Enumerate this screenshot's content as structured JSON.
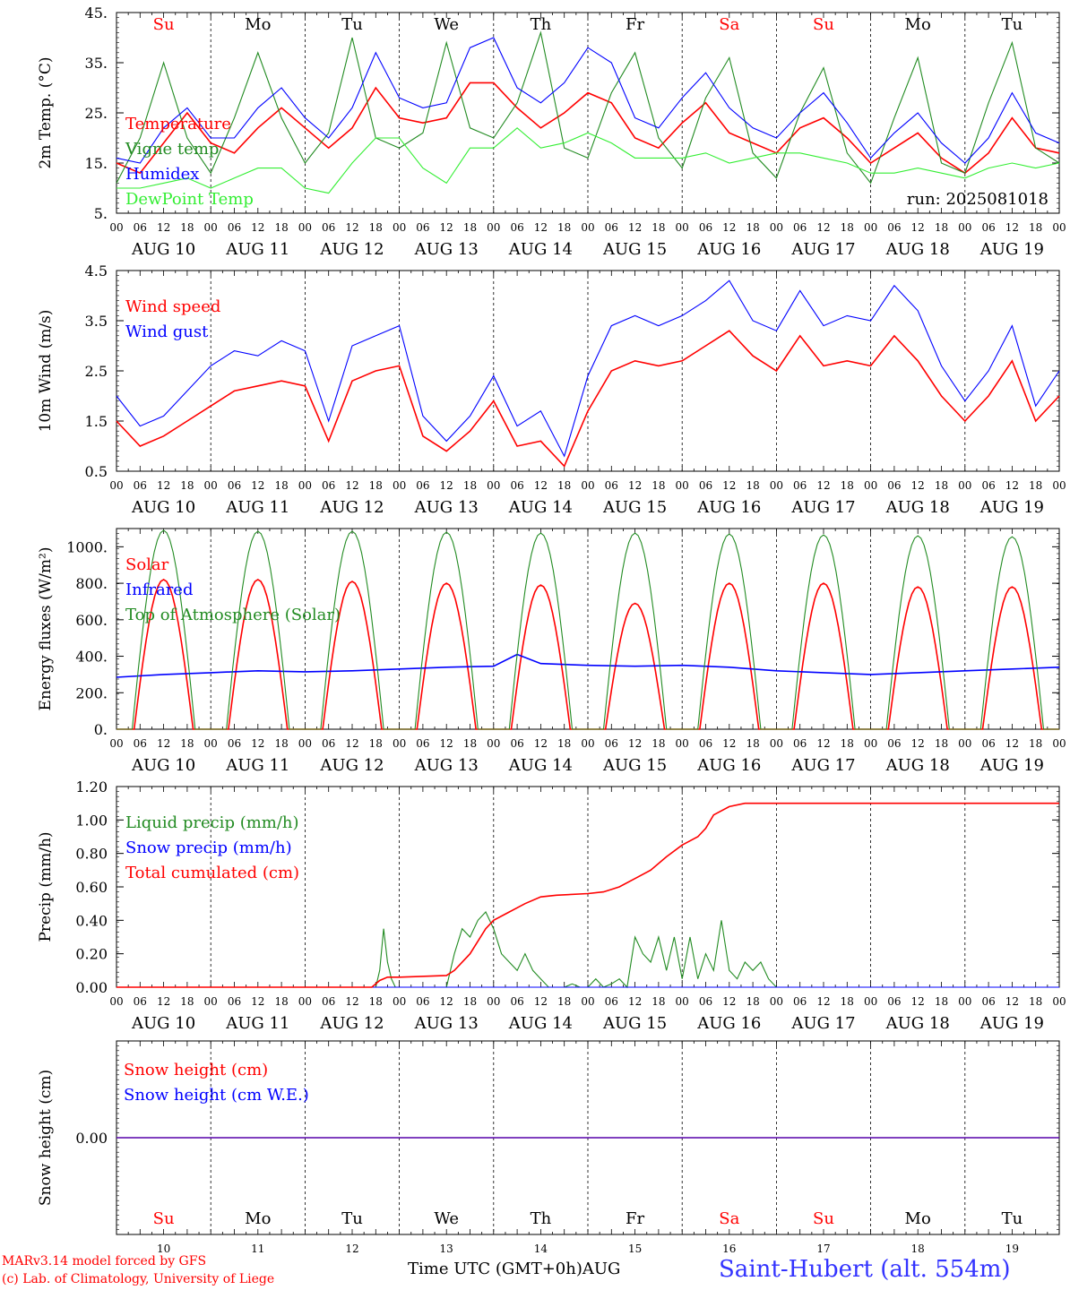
{
  "run_label": "run: 2025081018",
  "days": {
    "day_names": [
      "Su",
      "Mo",
      "Tu",
      "We",
      "Th",
      "Fr",
      "Sa",
      "Su",
      "Mo",
      "Tu"
    ],
    "day_name_colors": [
      "#ff0000",
      "#000000",
      "#000000",
      "#000000",
      "#000000",
      "#000000",
      "#ff0000",
      "#ff0000",
      "#000000",
      "#000000"
    ],
    "date_labels": [
      "AUG 10",
      "AUG 11",
      "AUG 12",
      "AUG 13",
      "AUG 14",
      "AUG 15",
      "AUG 16",
      "AUG 17",
      "AUG 18",
      "AUG 19"
    ],
    "day_numbers": [
      "10",
      "11",
      "12",
      "13",
      "14",
      "15",
      "16",
      "17",
      "18",
      "19"
    ],
    "hour_labels": [
      "00",
      "06",
      "12",
      "18"
    ],
    "last_hour_label": "00"
  },
  "footer": {
    "model_note": "MARv3.14 model forced by GFS",
    "credit_note": "(c) Lab. of Climatology, University of Liege",
    "time_caption": "Time UTC (GMT+0h)AUG",
    "station": "Saint-Hubert (alt. 554m)"
  },
  "colors": {
    "red": "#ff0000",
    "green": "#228b22",
    "blue": "#0000ff",
    "light_green": "#33ee33",
    "grid": "#000000"
  },
  "chart_data": [
    {
      "type": "line",
      "ylabel": "2m Temp. (°C)",
      "yticks": [
        "45.",
        "35.",
        "25.",
        "15.",
        "5."
      ],
      "ylim": [
        5,
        45
      ],
      "x_unit": "hours since AUG 10 00 UTC",
      "series": [
        {
          "name": "Temperature",
          "color": "red",
          "x": [
            0,
            6,
            12,
            18,
            24,
            30,
            36,
            42,
            48,
            54,
            60,
            66,
            72,
            78,
            84,
            90,
            96,
            102,
            108,
            114,
            120,
            126,
            132,
            138,
            144,
            150,
            156,
            162,
            168,
            174,
            180,
            186,
            192,
            198,
            204,
            210,
            216,
            222,
            228,
            234,
            240
          ],
          "values": [
            15,
            13,
            19,
            25,
            19,
            17,
            22,
            26,
            22,
            18,
            22,
            30,
            24,
            23,
            24,
            31,
            31,
            26,
            22,
            25,
            29,
            27,
            20,
            18,
            23,
            27,
            21,
            19,
            17,
            22,
            24,
            20,
            15,
            18,
            21,
            16,
            13,
            17,
            24,
            18,
            17
          ]
        },
        {
          "name": "Vigne temp",
          "color": "green",
          "x": [
            0,
            6,
            12,
            18,
            24,
            30,
            36,
            42,
            48,
            54,
            60,
            66,
            72,
            78,
            84,
            90,
            96,
            102,
            108,
            114,
            120,
            126,
            132,
            138,
            144,
            150,
            156,
            162,
            168,
            174,
            180,
            186,
            192,
            198,
            204,
            210,
            216,
            222,
            228,
            234,
            240
          ],
          "values": [
            11,
            20,
            35,
            20,
            13,
            24,
            37,
            24,
            15,
            21,
            40,
            20,
            18,
            21,
            39,
            22,
            20,
            27,
            41,
            18,
            16,
            29,
            37,
            20,
            14,
            28,
            36,
            17,
            12,
            25,
            34,
            17,
            11,
            24,
            36,
            15,
            13,
            27,
            39,
            18,
            15
          ]
        },
        {
          "name": "Humidex",
          "color": "blue",
          "x": [
            0,
            6,
            12,
            18,
            24,
            30,
            36,
            42,
            48,
            54,
            60,
            66,
            72,
            78,
            84,
            90,
            96,
            102,
            108,
            114,
            120,
            126,
            132,
            138,
            144,
            150,
            156,
            162,
            168,
            174,
            180,
            186,
            192,
            198,
            204,
            210,
            216,
            222,
            228,
            234,
            240
          ],
          "values": [
            16,
            15,
            22,
            26,
            20,
            20,
            26,
            30,
            24,
            20,
            26,
            37,
            28,
            26,
            27,
            38,
            40,
            30,
            27,
            31,
            38,
            35,
            24,
            22,
            28,
            33,
            26,
            22,
            20,
            25,
            29,
            23,
            16,
            21,
            25,
            19,
            15,
            20,
            29,
            21,
            19
          ]
        },
        {
          "name": "DewPoint Temp",
          "color": "light_green",
          "x": [
            0,
            6,
            12,
            18,
            24,
            30,
            36,
            42,
            48,
            54,
            60,
            66,
            72,
            78,
            84,
            90,
            96,
            102,
            108,
            114,
            120,
            126,
            132,
            138,
            144,
            150,
            156,
            162,
            168,
            174,
            180,
            186,
            192,
            198,
            204,
            210,
            216,
            222,
            228,
            234,
            240
          ],
          "values": [
            10,
            10,
            11,
            12,
            10,
            12,
            14,
            14,
            10,
            9,
            15,
            20,
            20,
            14,
            11,
            18,
            18,
            22,
            18,
            19,
            21,
            19,
            16,
            16,
            16,
            17,
            15,
            16,
            17,
            17,
            16,
            15,
            13,
            13,
            14,
            13,
            12,
            14,
            15,
            14,
            15
          ]
        }
      ]
    },
    {
      "type": "line",
      "ylabel": "10m Wind (m/s)",
      "yticks": [
        "4.5",
        "3.5",
        "2.5",
        "1.5",
        "0.5"
      ],
      "ylim": [
        0.5,
        4.5
      ],
      "x_unit": "hours since AUG 10 00 UTC",
      "series": [
        {
          "name": "Wind speed",
          "color": "red",
          "x": [
            0,
            6,
            12,
            18,
            24,
            30,
            36,
            42,
            48,
            54,
            60,
            66,
            72,
            78,
            84,
            90,
            96,
            102,
            108,
            114,
            120,
            126,
            132,
            138,
            144,
            150,
            156,
            162,
            168,
            174,
            180,
            186,
            192,
            198,
            204,
            210,
            216,
            222,
            228,
            234,
            240
          ],
          "values": [
            1.5,
            1.0,
            1.2,
            1.5,
            1.8,
            2.1,
            2.2,
            2.3,
            2.2,
            1.1,
            2.3,
            2.5,
            2.6,
            1.2,
            0.9,
            1.3,
            1.9,
            1.0,
            1.1,
            0.6,
            1.7,
            2.5,
            2.7,
            2.6,
            2.7,
            3.0,
            3.3,
            2.8,
            2.5,
            3.2,
            2.6,
            2.7,
            2.6,
            3.2,
            2.7,
            2.0,
            1.5,
            2.0,
            2.7,
            1.5,
            2.0
          ]
        },
        {
          "name": "Wind gust",
          "color": "blue",
          "x": [
            0,
            6,
            12,
            18,
            24,
            30,
            36,
            42,
            48,
            54,
            60,
            66,
            72,
            78,
            84,
            90,
            96,
            102,
            108,
            114,
            120,
            126,
            132,
            138,
            144,
            150,
            156,
            162,
            168,
            174,
            180,
            186,
            192,
            198,
            204,
            210,
            216,
            222,
            228,
            234,
            240
          ],
          "values": [
            2.0,
            1.4,
            1.6,
            2.1,
            2.6,
            2.9,
            2.8,
            3.1,
            2.9,
            1.5,
            3.0,
            3.2,
            3.4,
            1.6,
            1.1,
            1.6,
            2.4,
            1.4,
            1.7,
            0.8,
            2.4,
            3.4,
            3.6,
            3.4,
            3.6,
            3.9,
            4.3,
            3.5,
            3.3,
            4.1,
            3.4,
            3.6,
            3.5,
            4.2,
            3.7,
            2.6,
            1.9,
            2.5,
            3.4,
            1.8,
            2.5
          ]
        }
      ]
    },
    {
      "type": "line",
      "ylabel": "Energy fluxes (W/m²)",
      "yticks": [
        "1000.",
        "800.",
        "600.",
        "400.",
        "200.",
        "0."
      ],
      "ylim": [
        0,
        1100
      ],
      "x_unit": "hours since AUG 10 00 UTC",
      "series": [
        {
          "name": "Solar",
          "color": "red",
          "daily_peak": [
            820,
            820,
            810,
            800,
            790,
            690,
            800,
            800,
            780,
            780
          ],
          "sunrise_hour": 4.5,
          "sunset_hour": 19.5
        },
        {
          "name": "Infrared",
          "color": "blue",
          "x": [
            0,
            12,
            24,
            36,
            48,
            60,
            72,
            84,
            96,
            102,
            108,
            120,
            132,
            144,
            156,
            168,
            180,
            192,
            204,
            216,
            228,
            240
          ],
          "values": [
            285,
            300,
            310,
            320,
            315,
            320,
            330,
            340,
            345,
            410,
            360,
            350,
            345,
            350,
            340,
            320,
            310,
            300,
            310,
            320,
            330,
            340
          ]
        },
        {
          "name": "Top of Atmosphere (Solar)",
          "color": "green",
          "daily_peak": [
            1090,
            1085,
            1085,
            1080,
            1075,
            1075,
            1070,
            1065,
            1060,
            1055
          ],
          "sunrise_hour": 4.0,
          "sunset_hour": 20.0
        }
      ]
    },
    {
      "type": "line",
      "ylabel": "Precip (mm/h)",
      "yticks": [
        "1.20",
        "1.00",
        "0.80",
        "0.60",
        "0.40",
        "0.20",
        "0.00"
      ],
      "ylim": [
        0,
        1.2
      ],
      "x_unit": "hours since AUG 10 00 UTC",
      "series": [
        {
          "name": "Liquid precip (mm/h)",
          "color": "green",
          "x": [
            0,
            66,
            67,
            68,
            69,
            70,
            71,
            84,
            86,
            88,
            90,
            92,
            94,
            96,
            98,
            100,
            102,
            104,
            106,
            108,
            110,
            112,
            114,
            116,
            118,
            120,
            122,
            124,
            126,
            128,
            130,
            132,
            134,
            136,
            138,
            140,
            142,
            144,
            146,
            148,
            150,
            152,
            154,
            156,
            158,
            160,
            162,
            164,
            166,
            168,
            240
          ],
          "values": [
            0,
            0,
            0.1,
            0.35,
            0.15,
            0.05,
            0,
            0,
            0.2,
            0.35,
            0.3,
            0.4,
            0.45,
            0.35,
            0.2,
            0.15,
            0.1,
            0.2,
            0.1,
            0.05,
            0,
            0,
            0,
            0.02,
            0,
            0,
            0.05,
            0,
            0.02,
            0.05,
            0,
            0.3,
            0.2,
            0.15,
            0.3,
            0.1,
            0.3,
            0.05,
            0.3,
            0.05,
            0.2,
            0.1,
            0.4,
            0.1,
            0.05,
            0.15,
            0.1,
            0.15,
            0.05,
            0,
            0
          ]
        },
        {
          "name": "Snow precip (mm/h)",
          "color": "blue",
          "x": [
            0,
            240
          ],
          "values": [
            0,
            0
          ]
        },
        {
          "name": "Total cumulated (cm)",
          "color": "red",
          "x": [
            0,
            65,
            67,
            69,
            72,
            84,
            86,
            90,
            94,
            96,
            100,
            104,
            108,
            112,
            120,
            124,
            128,
            132,
            136,
            140,
            144,
            148,
            150,
            152,
            156,
            160,
            162,
            240
          ],
          "values": [
            0,
            0,
            0.04,
            0.06,
            0.06,
            0.07,
            0.1,
            0.2,
            0.35,
            0.4,
            0.45,
            0.5,
            0.54,
            0.55,
            0.56,
            0.57,
            0.6,
            0.65,
            0.7,
            0.78,
            0.85,
            0.9,
            0.95,
            1.03,
            1.08,
            1.1,
            1.1,
            1.1
          ]
        }
      ]
    },
    {
      "type": "line",
      "ylabel": "Snow height (cm)",
      "yticks": [
        "0.00"
      ],
      "ylim": [
        -1,
        1
      ],
      "x_unit": "hours since AUG 10 00 UTC",
      "series": [
        {
          "name": "Snow height (cm)",
          "color": "red",
          "x": [
            0,
            240
          ],
          "values": [
            0,
            0
          ]
        },
        {
          "name": "Snow height (cm W.E.)",
          "color": "blue",
          "x": [
            0,
            240
          ],
          "values": [
            0,
            0
          ]
        }
      ]
    }
  ]
}
